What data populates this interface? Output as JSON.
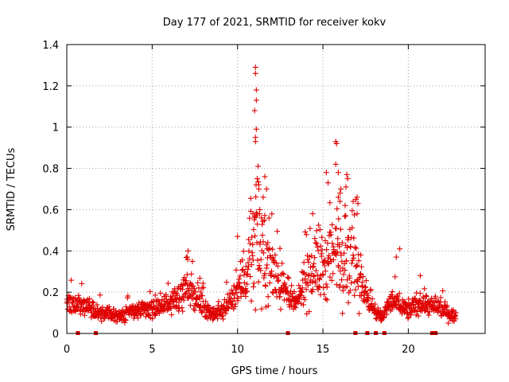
{
  "chart_data": {
    "type": "scatter",
    "title": "Day 177 of 2021, SRMTID for receiver kokv",
    "xlabel": "GPS time / hours",
    "ylabel": "SRMTID / TECUs",
    "xlim": [
      0,
      24.5
    ],
    "ylim": [
      0,
      1.4
    ],
    "xticks": [
      0,
      5,
      10,
      15,
      20
    ],
    "xtick_labels": [
      "0",
      "5",
      "10",
      "15",
      "20"
    ],
    "yticks": [
      0,
      0.2,
      0.4,
      0.6,
      0.8,
      1.0,
      1.2,
      1.4
    ],
    "ytick_labels": [
      "0",
      "0.2",
      "0.4",
      "0.6",
      "0.8",
      "1",
      "1.2",
      "1.4"
    ],
    "grid": true,
    "marker": "plus",
    "color": "#e00000",
    "series": [
      {
        "name": "SRMTID",
        "profile_x": [
          0,
          0.5,
          1,
          2,
          3,
          4,
          5,
          6,
          6.5,
          7,
          7.3,
          8,
          8.5,
          9,
          9.5,
          10,
          10.5,
          11,
          11.5,
          12,
          12.5,
          13,
          13.5,
          14,
          14.5,
          15,
          15.5,
          16,
          16.5,
          17,
          17.5,
          18,
          18.5,
          19,
          19.5,
          20,
          20.5,
          21,
          21.5,
          22,
          22.5,
          22.8
        ],
        "profile_y": [
          0.15,
          0.13,
          0.14,
          0.1,
          0.09,
          0.11,
          0.12,
          0.15,
          0.18,
          0.22,
          0.2,
          0.14,
          0.09,
          0.1,
          0.15,
          0.22,
          0.3,
          0.42,
          0.38,
          0.32,
          0.26,
          0.17,
          0.14,
          0.28,
          0.34,
          0.32,
          0.36,
          0.4,
          0.38,
          0.35,
          0.18,
          0.1,
          0.08,
          0.16,
          0.14,
          0.11,
          0.14,
          0.15,
          0.12,
          0.12,
          0.09,
          0.08
        ],
        "peaks": [
          {
            "x": 11.05,
            "y": 1.29
          },
          {
            "x": 11.05,
            "y": 1.26
          },
          {
            "x": 11.1,
            "y": 1.18
          },
          {
            "x": 11.1,
            "y": 1.13
          },
          {
            "x": 11.0,
            "y": 1.08
          },
          {
            "x": 11.1,
            "y": 0.99
          },
          {
            "x": 11.05,
            "y": 0.95
          },
          {
            "x": 11.05,
            "y": 0.93
          },
          {
            "x": 11.2,
            "y": 0.81
          },
          {
            "x": 11.25,
            "y": 0.7
          },
          {
            "x": 11.3,
            "y": 0.6
          },
          {
            "x": 11.15,
            "y": 0.75
          },
          {
            "x": 11.6,
            "y": 0.76
          },
          {
            "x": 11.7,
            "y": 0.7
          },
          {
            "x": 11.5,
            "y": 0.66
          },
          {
            "x": 10.9,
            "y": 0.58
          },
          {
            "x": 11.1,
            "y": 0.57
          },
          {
            "x": 15.75,
            "y": 0.93
          },
          {
            "x": 15.8,
            "y": 0.92
          },
          {
            "x": 15.75,
            "y": 0.82
          },
          {
            "x": 15.9,
            "y": 0.78
          },
          {
            "x": 15.2,
            "y": 0.78
          },
          {
            "x": 15.3,
            "y": 0.73
          },
          {
            "x": 16.4,
            "y": 0.77
          },
          {
            "x": 16.45,
            "y": 0.75
          },
          {
            "x": 16.35,
            "y": 0.71
          },
          {
            "x": 16.05,
            "y": 0.7
          },
          {
            "x": 16.0,
            "y": 0.68
          },
          {
            "x": 15.9,
            "y": 0.66
          },
          {
            "x": 16.0,
            "y": 0.64
          },
          {
            "x": 17.0,
            "y": 0.66
          },
          {
            "x": 17.05,
            "y": 0.63
          },
          {
            "x": 17.0,
            "y": 0.58
          },
          {
            "x": 16.3,
            "y": 0.62
          },
          {
            "x": 14.4,
            "y": 0.58
          },
          {
            "x": 19.5,
            "y": 0.41
          },
          {
            "x": 19.3,
            "y": 0.37
          },
          {
            "x": 7.1,
            "y": 0.4
          },
          {
            "x": 7.05,
            "y": 0.37
          },
          {
            "x": 20.7,
            "y": 0.28
          },
          {
            "x": 10.0,
            "y": 0.47
          }
        ],
        "bottom_markers_x": [
          0.65,
          1.7,
          12.95,
          16.9,
          17.6,
          18.1,
          18.6,
          21.4,
          21.6
        ]
      }
    ]
  }
}
